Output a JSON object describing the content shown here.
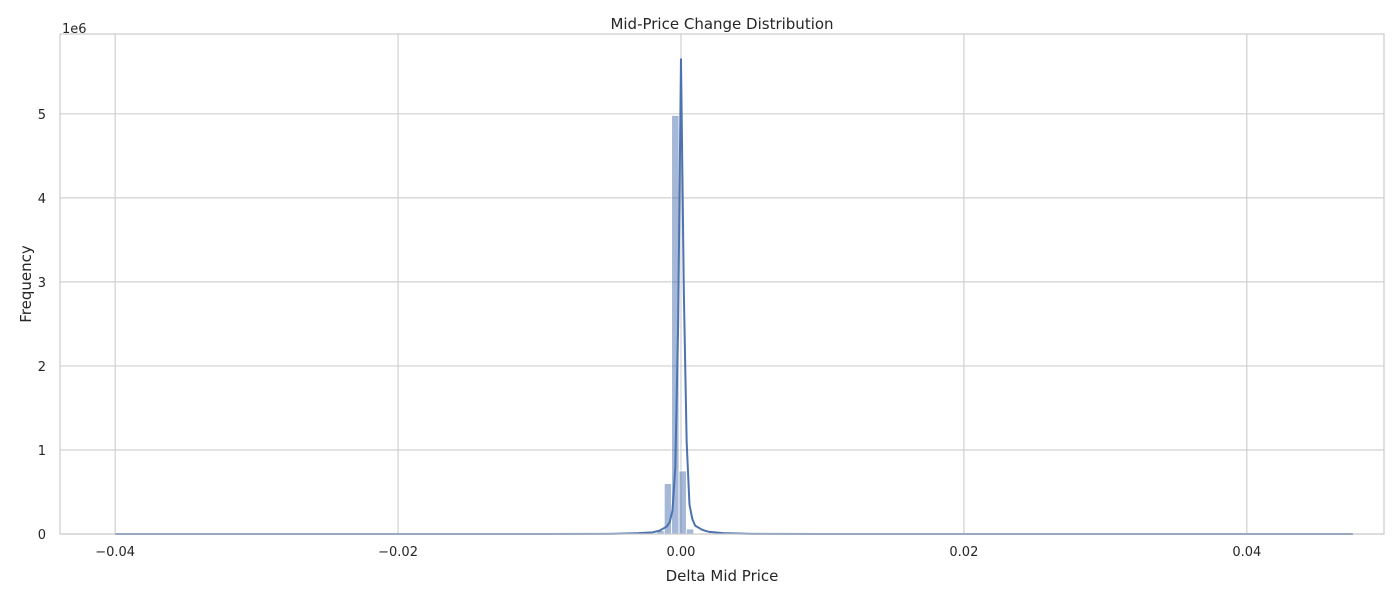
{
  "chart_data": {
    "type": "bar",
    "title": "Mid-Price Change Distribution",
    "xlabel": "Delta Mid Price",
    "ylabel": "Frequency",
    "y_offset_label": "1e6",
    "xlim": [
      -0.0439,
      0.0497
    ],
    "ylim": [
      0,
      5.95
    ],
    "x_ticks": [
      -0.04,
      -0.02,
      0.0,
      0.02,
      0.04
    ],
    "x_tick_labels": [
      "−0.04",
      "−0.02",
      "0.00",
      "0.02",
      "0.04"
    ],
    "y_ticks": [
      0,
      1,
      2,
      3,
      4,
      5
    ],
    "y_tick_labels": [
      "0",
      "1",
      "2",
      "3",
      "4",
      "5"
    ],
    "grid": true,
    "colors": {
      "bar": "#4c72b0",
      "kde": "#4c72b0",
      "grid": "#d0d0d0",
      "spine": "#cccccc"
    },
    "histogram": {
      "bin_edges": [
        -0.0017,
        -0.00118,
        -0.00066,
        -0.00014,
        0.00038,
        0.0009,
        0.00142
      ],
      "values": [
        0.04,
        0.6,
        4.98,
        0.75,
        0.06,
        0.01
      ]
    },
    "kde": {
      "x": [
        -0.04,
        -0.01,
        -0.005,
        -0.003,
        -0.002,
        -0.0015,
        -0.001,
        -0.0008,
        -0.0006,
        -0.0004,
        -0.0002,
        0.0,
        0.0002,
        0.0004,
        0.0006,
        0.0008,
        0.001,
        0.0015,
        0.002,
        0.003,
        0.005,
        0.01,
        0.0475
      ],
      "y": [
        0,
        0,
        0.002,
        0.01,
        0.02,
        0.04,
        0.09,
        0.14,
        0.28,
        0.8,
        2.5,
        5.65,
        2.9,
        1.1,
        0.35,
        0.18,
        0.1,
        0.05,
        0.025,
        0.01,
        0.002,
        0,
        0
      ]
    }
  }
}
